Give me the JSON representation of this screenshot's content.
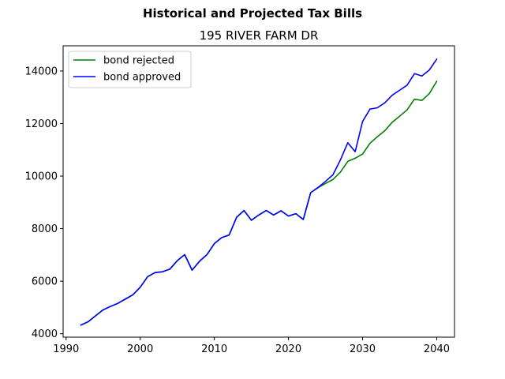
{
  "chart_data": {
    "type": "line",
    "suptitle": "Historical and Projected Tax Bills",
    "title": "195 RIVER FARM DR",
    "xlabel": "",
    "ylabel": "",
    "xlim": [
      1989.6,
      2042.4
    ],
    "ylim": [
      3870,
      14960
    ],
    "xticks": [
      1990,
      2000,
      2010,
      2020,
      2030,
      2040
    ],
    "yticks": [
      4000,
      6000,
      8000,
      10000,
      12000,
      14000
    ],
    "grid": false,
    "legend_position": "upper left",
    "series": [
      {
        "name": "bond rejected",
        "color": "#008000",
        "x": [
          1992,
          1993,
          1994,
          1995,
          1996,
          1997,
          1998,
          1999,
          2000,
          2001,
          2002,
          2003,
          2004,
          2005,
          2006,
          2007,
          2008,
          2009,
          2010,
          2011,
          2012,
          2013,
          2014,
          2015,
          2016,
          2017,
          2018,
          2019,
          2020,
          2021,
          2022,
          2023,
          2024,
          2025,
          2026,
          2027,
          2028,
          2029,
          2030,
          2031,
          2032,
          2033,
          2034,
          2035,
          2036,
          2037,
          2038,
          2039,
          2040
        ],
        "values": [
          4330,
          4460,
          4690,
          4910,
          5040,
          5160,
          5320,
          5480,
          5770,
          6170,
          6330,
          6360,
          6460,
          6780,
          7010,
          6420,
          6760,
          7010,
          7430,
          7660,
          7760,
          8430,
          8690,
          8320,
          8520,
          8690,
          8520,
          8680,
          8480,
          8570,
          8350,
          9370,
          9560,
          9720,
          9870,
          10150,
          10560,
          10680,
          10840,
          11250,
          11500,
          11730,
          12050,
          12280,
          12520,
          12930,
          12880,
          13140,
          13610
        ]
      },
      {
        "name": "bond approved",
        "color": "#0000ff",
        "x": [
          1992,
          1993,
          1994,
          1995,
          1996,
          1997,
          1998,
          1999,
          2000,
          2001,
          2002,
          2003,
          2004,
          2005,
          2006,
          2007,
          2008,
          2009,
          2010,
          2011,
          2012,
          2013,
          2014,
          2015,
          2016,
          2017,
          2018,
          2019,
          2020,
          2021,
          2022,
          2023,
          2024,
          2025,
          2026,
          2027,
          2028,
          2029,
          2030,
          2031,
          2032,
          2033,
          2034,
          2035,
          2036,
          2037,
          2038,
          2039,
          2040
        ],
        "values": [
          4330,
          4460,
          4690,
          4910,
          5040,
          5160,
          5320,
          5480,
          5770,
          6170,
          6330,
          6360,
          6460,
          6780,
          7010,
          6420,
          6760,
          7010,
          7430,
          7660,
          7760,
          8430,
          8690,
          8320,
          8520,
          8690,
          8520,
          8680,
          8480,
          8570,
          8350,
          9370,
          9570,
          9800,
          10050,
          10610,
          11270,
          10930,
          12080,
          12550,
          12600,
          12790,
          13080,
          13270,
          13460,
          13900,
          13810,
          14040,
          14450
        ]
      }
    ]
  }
}
